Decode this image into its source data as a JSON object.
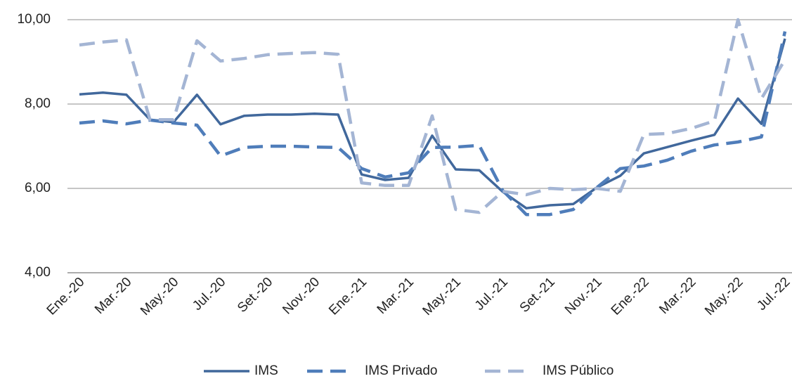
{
  "chart_data": {
    "type": "line",
    "categories": [
      "Ene.-20",
      null,
      "Mar.-20",
      null,
      "May.-20",
      null,
      "Jul.-20",
      null,
      "Set.-20",
      null,
      "Nov.-20",
      null,
      "Ene.-21",
      null,
      "Mar.-21",
      null,
      "May.-21",
      null,
      "Jul.-21",
      null,
      "Set.-21",
      null,
      "Nov.-21",
      null,
      "Ene.-22",
      null,
      "Mar.-22",
      null,
      "May.-22",
      null,
      "Jul.-22"
    ],
    "series": [
      {
        "name": "IMS",
        "color": "#41689c",
        "dash": "solid",
        "values": [
          8.23,
          8.27,
          8.22,
          7.63,
          7.57,
          8.22,
          7.52,
          7.72,
          7.75,
          7.75,
          7.77,
          7.75,
          6.33,
          6.2,
          6.25,
          7.25,
          6.45,
          6.43,
          5.92,
          5.53,
          5.6,
          5.63,
          6.02,
          6.3,
          6.83,
          6.98,
          7.13,
          7.27,
          8.13,
          7.53,
          9.55
        ]
      },
      {
        "name": "IMS Privado",
        "color": "#4f7dba",
        "dash": "dashed",
        "values": [
          7.55,
          7.6,
          7.53,
          7.62,
          7.55,
          7.5,
          6.77,
          6.97,
          7.0,
          7.0,
          6.98,
          6.97,
          6.47,
          6.27,
          6.37,
          6.97,
          6.98,
          7.02,
          5.95,
          5.38,
          5.38,
          5.5,
          6.02,
          6.47,
          6.53,
          6.67,
          6.88,
          7.03,
          7.1,
          7.22,
          9.72
        ]
      },
      {
        "name": "IMS Público",
        "color": "#a4b5d4",
        "dash": "dashed",
        "values": [
          9.4,
          9.47,
          9.52,
          7.63,
          7.63,
          9.5,
          9.02,
          9.08,
          9.17,
          9.2,
          9.22,
          9.18,
          6.13,
          6.07,
          6.07,
          7.72,
          5.5,
          5.43,
          5.93,
          5.85,
          6.0,
          5.97,
          6.0,
          5.93,
          7.28,
          7.3,
          7.42,
          7.6,
          10.0,
          8.13,
          9.05
        ]
      }
    ],
    "ylim": [
      4,
      10
    ],
    "yticks": [
      {
        "value": 4,
        "label": "4,00"
      },
      {
        "value": 6,
        "label": "6,00"
      },
      {
        "value": 8,
        "label": "8,00"
      },
      {
        "value": 10,
        "label": "10,00"
      }
    ],
    "grid": true,
    "legend": "bottom"
  }
}
